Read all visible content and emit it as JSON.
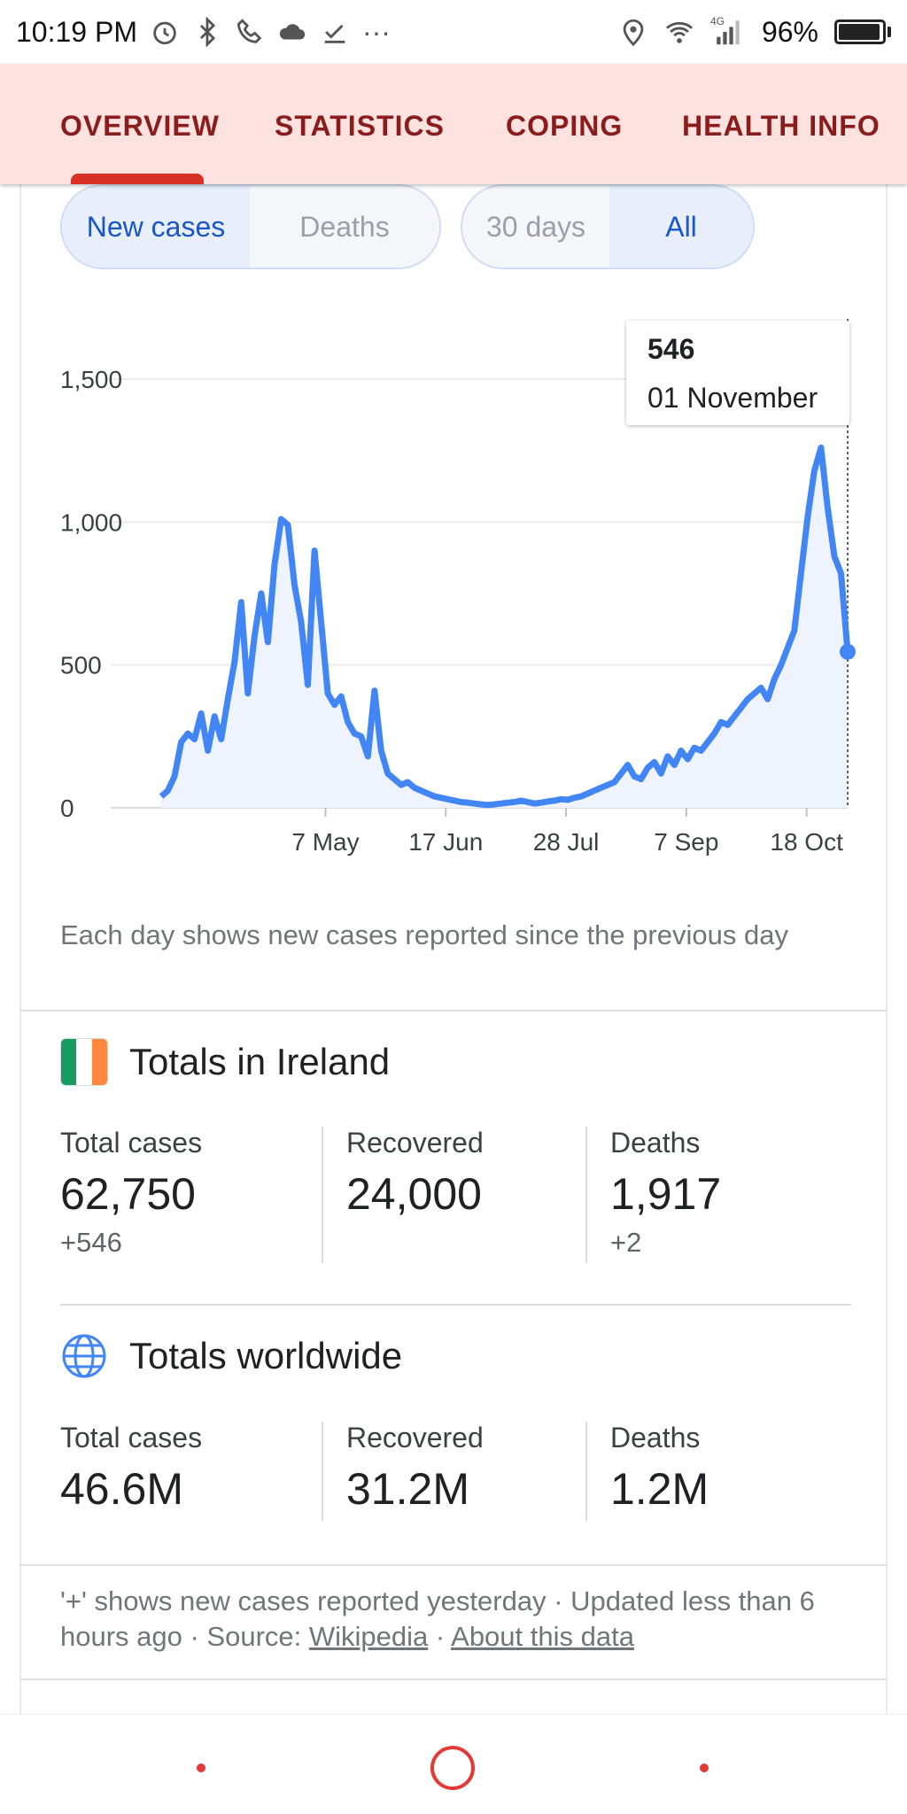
{
  "status_bar": {
    "time": "10:19 PM",
    "more": "···",
    "network": "4G",
    "battery": "96%",
    "battery_level": 0.96,
    "icons": [
      "alarm-icon",
      "bluetooth-icon",
      "call-icon",
      "cloud-icon",
      "download-done-icon",
      "location-icon",
      "wifi-icon",
      "signal-icon",
      "battery-icon"
    ]
  },
  "tabs": [
    {
      "label": "OVERVIEW",
      "active": true
    },
    {
      "label": "STATISTICS",
      "active": false
    },
    {
      "label": "COPING",
      "active": false
    },
    {
      "label": "HEALTH INFO",
      "active": false
    }
  ],
  "toggles": {
    "metric": [
      {
        "label": "New cases",
        "active": true
      },
      {
        "label": "Deaths",
        "active": false
      }
    ],
    "range": [
      {
        "label": "30 days",
        "active": false
      },
      {
        "label": "All",
        "active": true
      }
    ]
  },
  "tooltip": {
    "value": "546",
    "date": "01 November"
  },
  "chart_data": {
    "type": "area",
    "y_ticks": [
      "0",
      "500",
      "1,000",
      "1,500"
    ],
    "ylim": [
      0,
      1500
    ],
    "x_ticks": [
      "7 May",
      "17 Jun",
      "28 Jul",
      "7 Sep",
      "18 Oct"
    ],
    "xlabel": "",
    "ylabel": "",
    "grid": true,
    "series_color": "#4285f4",
    "x_start": "2020-03-12",
    "x_end": "2020-11-01",
    "values": [
      40,
      60,
      110,
      230,
      260,
      240,
      330,
      200,
      320,
      240,
      380,
      510,
      720,
      400,
      600,
      750,
      580,
      850,
      1010,
      990,
      780,
      650,
      430,
      900,
      650,
      400,
      360,
      390,
      300,
      260,
      250,
      180,
      410,
      200,
      120,
      100,
      80,
      90,
      70,
      60,
      50,
      40,
      35,
      30,
      25,
      20,
      18,
      15,
      12,
      10,
      12,
      15,
      18,
      20,
      25,
      20,
      15,
      18,
      22,
      25,
      30,
      28,
      35,
      40,
      50,
      60,
      70,
      80,
      90,
      120,
      150,
      110,
      100,
      140,
      160,
      120,
      180,
      150,
      200,
      170,
      210,
      200,
      230,
      260,
      300,
      290,
      320,
      350,
      380,
      400,
      420,
      380,
      450,
      500,
      560,
      620,
      820,
      1020,
      1180,
      1260,
      1050,
      880,
      820,
      546
    ]
  },
  "chart_note": "Each day shows new cases reported since the previous day",
  "ireland": {
    "title": "Totals in Ireland",
    "flag_colors": [
      "#169b62",
      "#ffffff",
      "#ff883e"
    ],
    "stats": [
      {
        "label": "Total cases",
        "value": "62,750",
        "delta": "+546"
      },
      {
        "label": "Recovered",
        "value": "24,000",
        "delta": ""
      },
      {
        "label": "Deaths",
        "value": "1,917",
        "delta": "+2"
      }
    ]
  },
  "worldwide": {
    "title": "Totals worldwide",
    "stats": [
      {
        "label": "Total cases",
        "value": "46.6M"
      },
      {
        "label": "Recovered",
        "value": "31.2M"
      },
      {
        "label": "Deaths",
        "value": "1.2M"
      }
    ]
  },
  "footer": {
    "text": "'+' shows new cases reported yesterday · Updated less than 6 hours ago  ·  Source:",
    "source_link": "Wikipedia",
    "separator": "·",
    "about_link": "About this data"
  },
  "accent_color": "#d93025"
}
